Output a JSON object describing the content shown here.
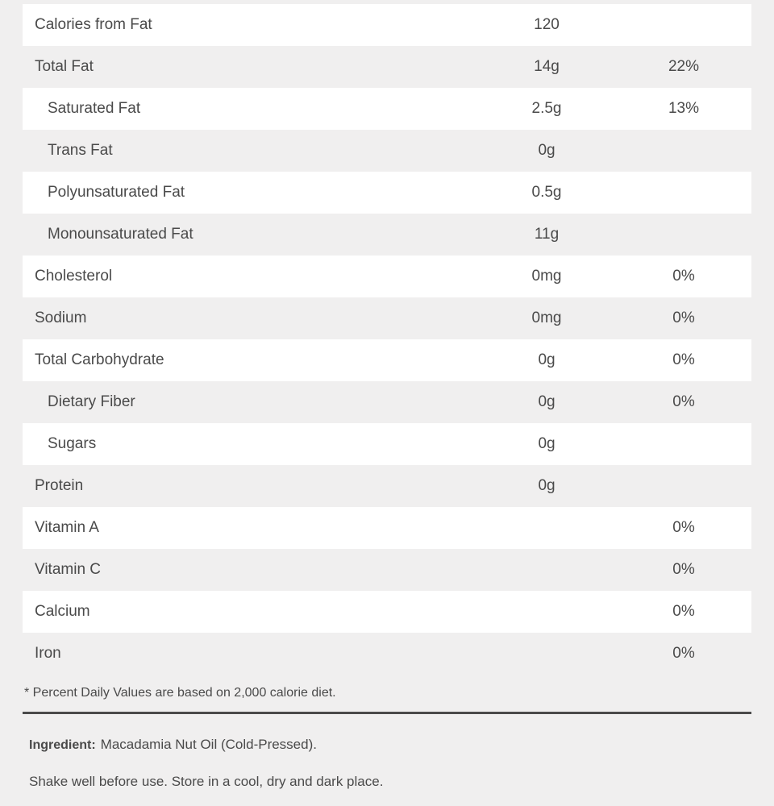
{
  "nutrition": {
    "rows": [
      {
        "name": "Calories from Fat",
        "amount": "120",
        "dv": "",
        "indent": false
      },
      {
        "name": "Total Fat",
        "amount": "14g",
        "dv": "22%",
        "indent": false
      },
      {
        "name": "Saturated Fat",
        "amount": "2.5g",
        "dv": "13%",
        "indent": true
      },
      {
        "name": "Trans Fat",
        "amount": "0g",
        "dv": "",
        "indent": true
      },
      {
        "name": "Polyunsaturated Fat",
        "amount": "0.5g",
        "dv": "",
        "indent": true
      },
      {
        "name": "Monounsaturated Fat",
        "amount": "11g",
        "dv": "",
        "indent": true
      },
      {
        "name": "Cholesterol",
        "amount": "0mg",
        "dv": "0%",
        "indent": false
      },
      {
        "name": "Sodium",
        "amount": "0mg",
        "dv": "0%",
        "indent": false
      },
      {
        "name": "Total Carbohydrate",
        "amount": "0g",
        "dv": "0%",
        "indent": false
      },
      {
        "name": "Dietary Fiber",
        "amount": "0g",
        "dv": "0%",
        "indent": true
      },
      {
        "name": "Sugars",
        "amount": "0g",
        "dv": "",
        "indent": true
      },
      {
        "name": "Protein",
        "amount": "0g",
        "dv": "",
        "indent": false
      },
      {
        "name": "Vitamin A",
        "amount": "",
        "dv": "0%",
        "indent": false
      },
      {
        "name": "Vitamin C",
        "amount": "",
        "dv": "0%",
        "indent": false
      },
      {
        "name": "Calcium",
        "amount": "",
        "dv": "0%",
        "indent": false
      },
      {
        "name": "Iron",
        "amount": "",
        "dv": "0%",
        "indent": false
      }
    ],
    "footnote": "* Percent Daily Values are based on 2,000 calorie diet."
  },
  "ingredients": {
    "label": "Ingredient:",
    "value": "Macadamia Nut Oil (Cold-Pressed)."
  },
  "storage": {
    "text": "Shake well before use. Store in a cool, dry and dark place."
  }
}
